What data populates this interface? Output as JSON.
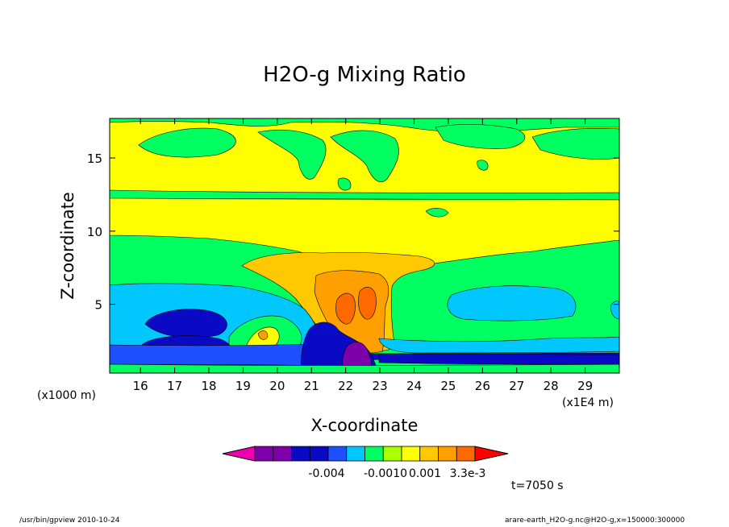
{
  "chart_data": {
    "type": "heatmap",
    "title": "H2O-g Mixing Ratio",
    "xlabel": "X-coordinate",
    "ylabel": "Z-coordinate",
    "x_ticks": [
      16,
      17,
      18,
      19,
      20,
      21,
      22,
      23,
      24,
      25,
      26,
      27,
      28,
      29
    ],
    "y_ticks": [
      5,
      10,
      15
    ],
    "x_scale_label": "(x1E4 m)",
    "y_scale_label": "(x1000 m)",
    "xlim": [
      15.1,
      30.0
    ],
    "ylim": [
      0.3,
      17.7
    ],
    "colorbar": {
      "colors": [
        "#ee00b0",
        "#7d00aa",
        "#7d00aa",
        "#0a0ac4",
        "#0a0ac4",
        "#1e50ff",
        "#00c8ff",
        "#00ff60",
        "#aaff00",
        "#ffff00",
        "#ffc800",
        "#ffa000",
        "#ff6a00",
        "#ff0000"
      ],
      "tick_labels": [
        "-0.004",
        "-0.0010",
        "0.001",
        "3.3e-3"
      ]
    },
    "time_label": "t=7050 s",
    "footer_left": "/usr/bin/gpview   2010-10-24",
    "footer_right": "arare-earth_H2O-g.nc@H2O-g,x=150000:300000"
  }
}
